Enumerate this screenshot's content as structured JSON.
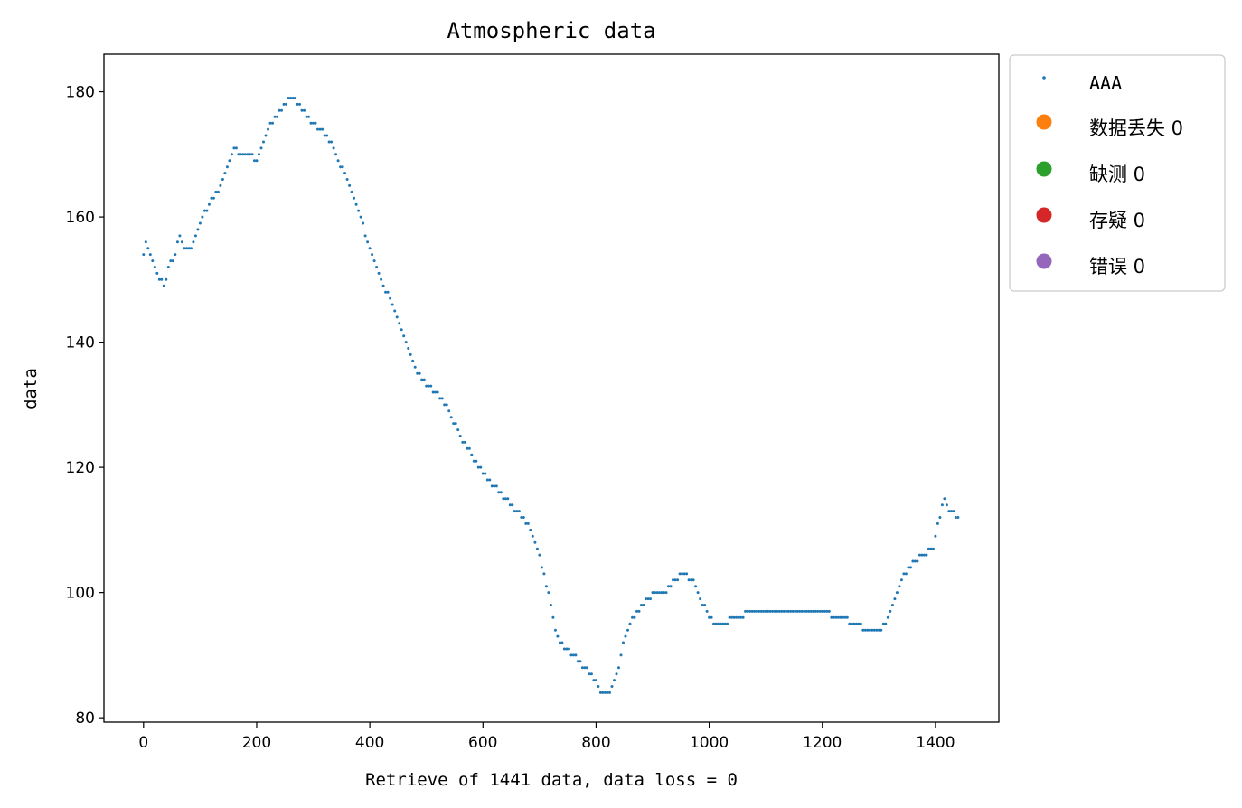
{
  "chart_data": {
    "type": "scatter",
    "title": "Atmospheric data",
    "xlabel": "Retrieve of 1441 data, data loss = 0",
    "ylabel": "data",
    "xlim": [
      -70,
      1512
    ],
    "ylim": [
      79.3,
      186
    ],
    "xticks": [
      0,
      200,
      400,
      600,
      800,
      1000,
      1200,
      1400
    ],
    "yticks": [
      80,
      100,
      120,
      140,
      160,
      180
    ],
    "grid": false,
    "legend_position": "outside-top-right",
    "series": [
      {
        "name": "AAA",
        "color": "#1f77b4",
        "marker": "point",
        "anchors": [
          [
            0,
            154
          ],
          [
            5,
            156
          ],
          [
            12,
            154
          ],
          [
            20,
            152
          ],
          [
            30,
            150
          ],
          [
            36,
            149
          ],
          [
            45,
            152
          ],
          [
            55,
            154
          ],
          [
            62,
            157
          ],
          [
            70,
            155
          ],
          [
            80,
            155
          ],
          [
            90,
            156
          ],
          [
            100,
            159
          ],
          [
            115,
            162
          ],
          [
            130,
            164
          ],
          [
            145,
            167
          ],
          [
            160,
            171
          ],
          [
            175,
            170
          ],
          [
            190,
            170
          ],
          [
            200,
            169
          ],
          [
            210,
            172
          ],
          [
            225,
            175
          ],
          [
            240,
            177
          ],
          [
            250,
            178
          ],
          [
            262,
            179
          ],
          [
            275,
            178
          ],
          [
            290,
            176
          ],
          [
            310,
            174
          ],
          [
            325,
            173
          ],
          [
            340,
            170
          ],
          [
            360,
            166
          ],
          [
            380,
            161
          ],
          [
            400,
            155
          ],
          [
            420,
            150
          ],
          [
            440,
            146
          ],
          [
            460,
            141
          ],
          [
            480,
            136
          ],
          [
            500,
            133
          ],
          [
            520,
            132
          ],
          [
            540,
            129
          ],
          [
            560,
            125
          ],
          [
            580,
            122
          ],
          [
            600,
            119
          ],
          [
            620,
            117
          ],
          [
            640,
            115
          ],
          [
            660,
            113
          ],
          [
            680,
            111
          ],
          [
            700,
            106
          ],
          [
            715,
            100
          ],
          [
            730,
            93
          ],
          [
            745,
            91
          ],
          [
            760,
            90
          ],
          [
            780,
            88
          ],
          [
            800,
            86
          ],
          [
            810,
            84
          ],
          [
            825,
            84
          ],
          [
            840,
            88
          ],
          [
            850,
            93
          ],
          [
            860,
            95
          ],
          [
            875,
            97
          ],
          [
            890,
            99
          ],
          [
            905,
            100
          ],
          [
            920,
            100
          ],
          [
            940,
            102
          ],
          [
            955,
            103
          ],
          [
            970,
            102
          ],
          [
            985,
            99
          ],
          [
            1000,
            96
          ],
          [
            1015,
            95
          ],
          [
            1050,
            96
          ],
          [
            1075,
            97
          ],
          [
            1100,
            97
          ],
          [
            1150,
            97
          ],
          [
            1200,
            97
          ],
          [
            1230,
            96
          ],
          [
            1260,
            95
          ],
          [
            1280,
            94
          ],
          [
            1305,
            94
          ],
          [
            1320,
            97
          ],
          [
            1340,
            102
          ],
          [
            1360,
            105
          ],
          [
            1380,
            106
          ],
          [
            1395,
            107
          ],
          [
            1410,
            113
          ],
          [
            1418,
            115
          ],
          [
            1425,
            113
          ],
          [
            1440,
            112
          ]
        ]
      },
      {
        "name": "数据丢失 0",
        "color": "#ff7f0e",
        "values": []
      },
      {
        "name": "缺测 0",
        "color": "#2ca02c",
        "values": []
      },
      {
        "name": "存疑 0",
        "color": "#d62728",
        "values": []
      },
      {
        "name": "错误 0",
        "color": "#9467bd",
        "values": []
      }
    ]
  }
}
